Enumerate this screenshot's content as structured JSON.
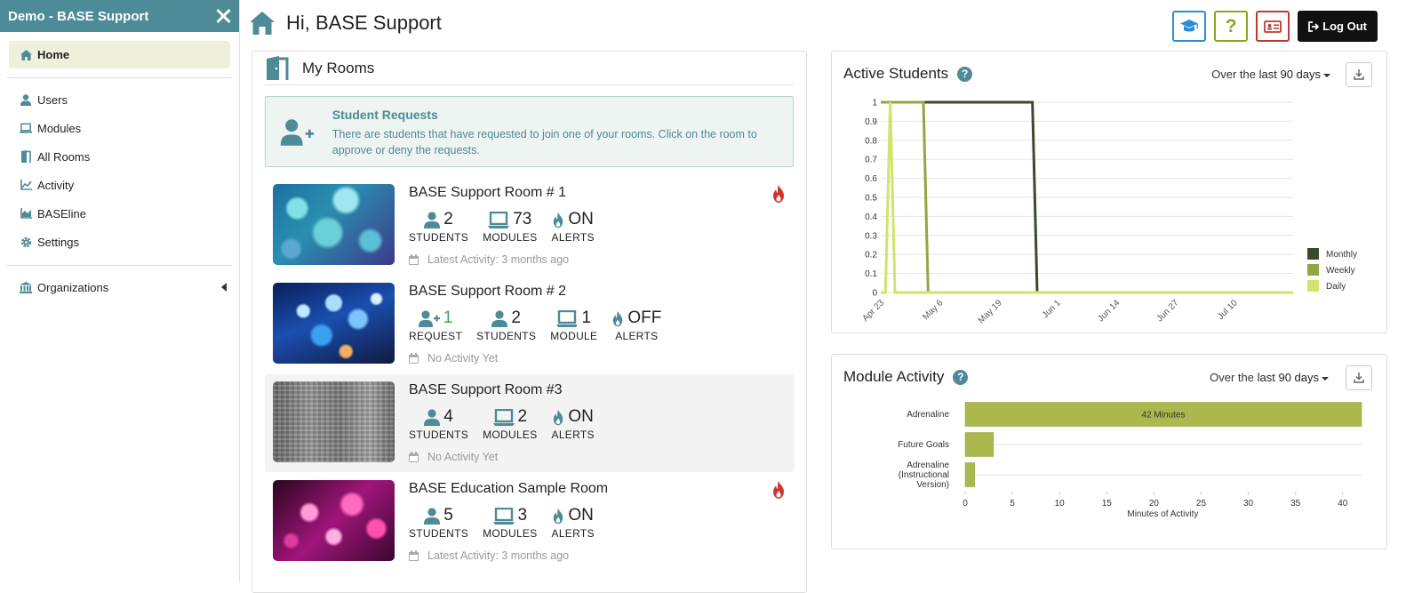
{
  "app": {
    "title": "Demo - BASE Support"
  },
  "sidebar": {
    "home": "Home",
    "items": [
      {
        "label": "Users",
        "icon": "user-icon"
      },
      {
        "label": "Modules",
        "icon": "laptop-icon"
      },
      {
        "label": "All Rooms",
        "icon": "door-icon"
      },
      {
        "label": "Activity",
        "icon": "line-chart-icon"
      },
      {
        "label": "BASEline",
        "icon": "area-chart-icon"
      },
      {
        "label": "Settings",
        "icon": "gear-icon"
      }
    ],
    "organizations": "Organizations"
  },
  "header": {
    "greeting": "Hi, BASE Support",
    "logout": "Log Out",
    "help": "?"
  },
  "rooms": {
    "title": "My Rooms",
    "requests": {
      "title": "Student Requests",
      "text": "There are students that have requested to join one of your rooms. Click on the room to approve or deny the requests."
    },
    "list": [
      {
        "name": "BASE Support Room # 1",
        "fire": true,
        "students": "2",
        "modules": "73",
        "alerts": "ON",
        "students_label": "STUDENTS",
        "modules_label": "MODULES",
        "alerts_label": "ALERTS",
        "activity": "Latest Activity: 3 months ago"
      },
      {
        "name": "BASE Support Room # 2",
        "fire": false,
        "requests": "1",
        "requests_label": "REQUEST",
        "students": "2",
        "modules": "1",
        "alerts": "OFF",
        "students_label": "STUDENTS",
        "modules_label": "MODULE",
        "alerts_label": "ALERTS",
        "activity": "No Activity Yet"
      },
      {
        "name": "BASE Support Room #3",
        "fire": false,
        "students": "4",
        "modules": "2",
        "alerts": "ON",
        "students_label": "STUDENTS",
        "modules_label": "MODULES",
        "alerts_label": "ALERTS",
        "activity": "No Activity Yet"
      },
      {
        "name": "BASE Education Sample Room",
        "fire": true,
        "students": "5",
        "modules": "3",
        "alerts": "ON",
        "students_label": "STUDENTS",
        "modules_label": "MODULES",
        "alerts_label": "ALERTS",
        "activity": "Latest Activity: 3 months ago"
      }
    ]
  },
  "active_students": {
    "title": "Active Students",
    "range_prefix": "Over the",
    "range_value": "last 90 days"
  },
  "module_activity": {
    "title": "Module Activity",
    "range_prefix": "Over the",
    "range_value": "last 90 days"
  },
  "colors": {
    "teal": "#4d8b96",
    "monthly": "#3c4a2a",
    "weekly": "#93a644",
    "daily": "#d2e26a",
    "bar": "#aab84e",
    "fire": "#d0342c"
  },
  "chart_data": [
    {
      "type": "line",
      "title": "Active Students",
      "x_ticks": [
        "Apr 23",
        "May 6",
        "May 19",
        "Jun 1",
        "Jun 14",
        "Jun 27",
        "Jul 10"
      ],
      "y_ticks": [
        "0",
        "0.1",
        "0.2",
        "0.3",
        "0.4",
        "0.5",
        "0.6",
        "0.7",
        "0.8",
        "0.9",
        "1"
      ],
      "ylim": [
        0,
        1
      ],
      "xlim_days": [
        0,
        87
      ],
      "legend_position": "right",
      "series": [
        {
          "name": "Monthly",
          "points": [
            [
              0,
              1
            ],
            [
              32,
              1
            ],
            [
              33,
              0
            ],
            [
              87,
              0
            ]
          ]
        },
        {
          "name": "Weekly",
          "points": [
            [
              0,
              1
            ],
            [
              9,
              1
            ],
            [
              10,
              0
            ],
            [
              87,
              0
            ]
          ]
        },
        {
          "name": "Daily",
          "points": [
            [
              0,
              0
            ],
            [
              1,
              0
            ],
            [
              2,
              1
            ],
            [
              3,
              0
            ],
            [
              87,
              0
            ]
          ]
        }
      ]
    },
    {
      "type": "bar",
      "orientation": "horizontal",
      "title": "Module Activity",
      "categories": [
        "Adrenaline",
        "Future Goals",
        "Adrenaline (Instructional Version)"
      ],
      "values": [
        42,
        3,
        1
      ],
      "data_labels": [
        "42 Minutes",
        "",
        ""
      ],
      "xlabel": "Minutes of Activity",
      "x_ticks": [
        "0",
        "5",
        "10",
        "15",
        "20",
        "25",
        "30",
        "35",
        "40"
      ],
      "xlim": [
        0,
        42
      ]
    }
  ]
}
